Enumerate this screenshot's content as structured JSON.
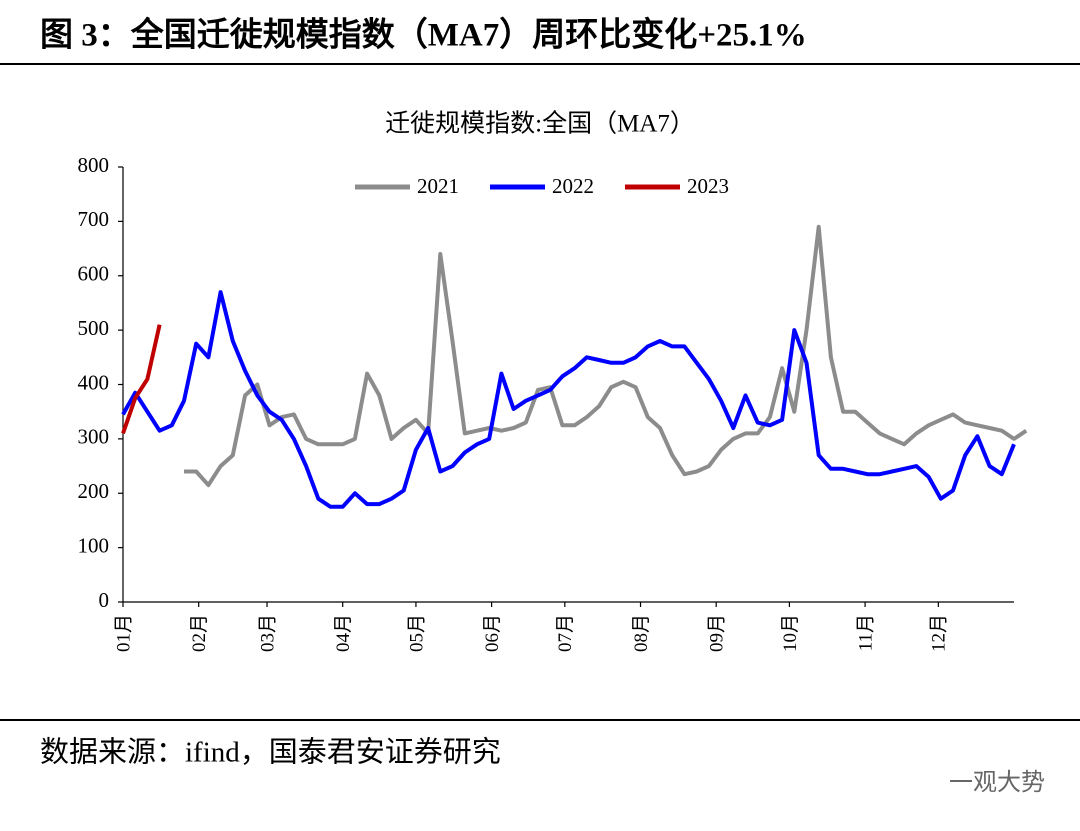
{
  "header": {
    "title": "图 3：全国迁徙规模指数（MA7）周环比变化+25.1%"
  },
  "chart_data": {
    "type": "line",
    "title": "迁徙规模指数:全国（MA7）",
    "xlim": [
      0,
      73
    ],
    "xticks": [
      {
        "value": 0,
        "label": "01月"
      },
      {
        "value": 6.2,
        "label": "02月"
      },
      {
        "value": 11.8,
        "label": "03月"
      },
      {
        "value": 18,
        "label": "04月"
      },
      {
        "value": 24,
        "label": "05月"
      },
      {
        "value": 30.2,
        "label": "06月"
      },
      {
        "value": 36.2,
        "label": "07月"
      },
      {
        "value": 42.4,
        "label": "08月"
      },
      {
        "value": 48.6,
        "label": "09月"
      },
      {
        "value": 54.6,
        "label": "10月"
      },
      {
        "value": 60.8,
        "label": "11月"
      },
      {
        "value": 66.8,
        "label": "12月"
      }
    ],
    "ylim": [
      0,
      800
    ],
    "yticks": [
      0,
      100,
      200,
      300,
      400,
      500,
      600,
      700,
      800
    ],
    "legend": "top",
    "series": [
      {
        "name": "2021",
        "color": "#8c8c8c",
        "values": [
          null,
          null,
          null,
          null,
          null,
          240,
          240,
          215,
          250,
          270,
          380,
          400,
          325,
          340,
          345,
          300,
          290,
          290,
          290,
          300,
          420,
          380,
          300,
          320,
          335,
          310,
          640,
          480,
          310,
          315,
          320,
          315,
          320,
          330,
          390,
          395,
          325,
          325,
          340,
          360,
          395,
          405,
          395,
          340,
          320,
          270,
          235,
          240,
          250,
          280,
          300,
          310,
          310,
          340,
          430,
          350,
          500,
          690,
          450,
          350,
          350,
          330,
          310,
          300,
          290,
          310,
          325,
          335,
          345,
          330,
          325,
          320,
          315,
          300,
          315
        ]
      },
      {
        "name": "2022",
        "color": "#0000ff",
        "values": [
          345,
          385,
          350,
          315,
          325,
          370,
          475,
          450,
          570,
          480,
          425,
          380,
          350,
          335,
          300,
          250,
          190,
          175,
          175,
          200,
          180,
          180,
          190,
          205,
          280,
          320,
          240,
          250,
          275,
          290,
          300,
          420,
          355,
          370,
          380,
          390,
          415,
          430,
          450,
          445,
          440,
          440,
          450,
          470,
          480,
          470,
          470,
          440,
          410,
          370,
          320,
          380,
          330,
          325,
          335,
          500,
          440,
          270,
          245,
          245,
          240,
          235,
          235,
          240,
          245,
          250,
          230,
          190,
          205,
          270,
          305,
          250,
          235,
          290
        ]
      },
      {
        "name": "2023",
        "color": "#c00000",
        "values": [
          310,
          375,
          410,
          510
        ]
      }
    ]
  },
  "footer": {
    "source": "数据来源：ifind，国泰君安证券研究",
    "watermark": "一观大势"
  }
}
